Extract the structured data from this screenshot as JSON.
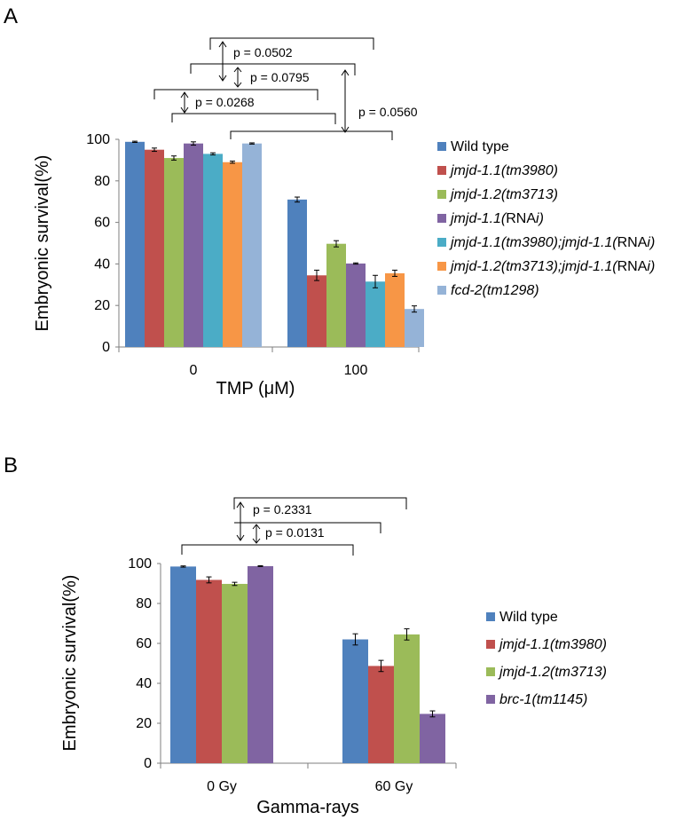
{
  "chart_data": [
    {
      "type": "bar",
      "panel": "A",
      "xlabel": "TMP (μM)",
      "ylabel": "Embryonic survival(%)",
      "ylim": [
        0,
        100
      ],
      "yticks": [
        0,
        20,
        40,
        60,
        80,
        100
      ],
      "categories": [
        "0",
        "100"
      ],
      "grid": false,
      "legend_position": "right",
      "series": [
        {
          "name": "Wild type",
          "color": "#4f81bd",
          "values": [
            98.8,
            71.0
          ],
          "errors": [
            0.3,
            1.2
          ]
        },
        {
          "name": "jmjd-1.1(tm3980)",
          "color": "#c0504d",
          "values": [
            95.0,
            34.5
          ],
          "errors": [
            0.8,
            2.5
          ]
        },
        {
          "name": "jmjd-1.2(tm3713)",
          "color": "#9bbb59",
          "values": [
            91.0,
            49.7
          ],
          "errors": [
            1.0,
            1.5
          ]
        },
        {
          "name": "jmjd-1.1(RNAi)",
          "color": "#8064a2",
          "values": [
            98.0,
            40.2
          ],
          "errors": [
            0.8,
            0.3
          ]
        },
        {
          "name": "jmjd-1.1(tm3980);jmjd-1.1(RNAi)",
          "color": "#4bacc6",
          "values": [
            93.0,
            31.5
          ],
          "errors": [
            0.5,
            3.0
          ]
        },
        {
          "name": "jmjd-1.2(tm3713);jmjd-1.1(RNAi)",
          "color": "#f79646",
          "values": [
            89.0,
            35.5
          ],
          "errors": [
            0.5,
            1.5
          ]
        },
        {
          "name": "fcd-2(tm1298)",
          "color": "#95b3d7",
          "values": [
            98.0,
            18.3
          ],
          "errors": [
            0.3,
            1.5
          ]
        }
      ],
      "annotations": [
        "p = 0.0502",
        "p = 0.0795",
        "p = 0.0268",
        "p = 0.0560"
      ]
    },
    {
      "type": "bar",
      "panel": "B",
      "xlabel": "Gamma-rays",
      "ylabel": "Embryonic survival(%)",
      "ylim": [
        0,
        100
      ],
      "yticks": [
        0,
        20,
        40,
        60,
        80,
        100
      ],
      "categories": [
        "0 Gy",
        "60 Gy"
      ],
      "grid": false,
      "legend_position": "right",
      "series": [
        {
          "name": "Wild type",
          "color": "#4f81bd",
          "values": [
            98.5,
            62.0
          ],
          "errors": [
            0.3,
            2.8
          ]
        },
        {
          "name": "jmjd-1.1(tm3980)",
          "color": "#c0504d",
          "values": [
            91.8,
            48.7
          ],
          "errors": [
            1.5,
            2.8
          ]
        },
        {
          "name": "jmjd-1.2(tm3713)",
          "color": "#9bbb59",
          "values": [
            89.8,
            64.5
          ],
          "errors": [
            0.8,
            2.8
          ]
        },
        {
          "name": "brc-1(tm1145)",
          "color": "#8064a2",
          "values": [
            98.7,
            24.7
          ],
          "errors": [
            0.2,
            1.5
          ]
        }
      ],
      "annotations": [
        "p = 0.2331",
        "p = 0.0131"
      ]
    }
  ]
}
